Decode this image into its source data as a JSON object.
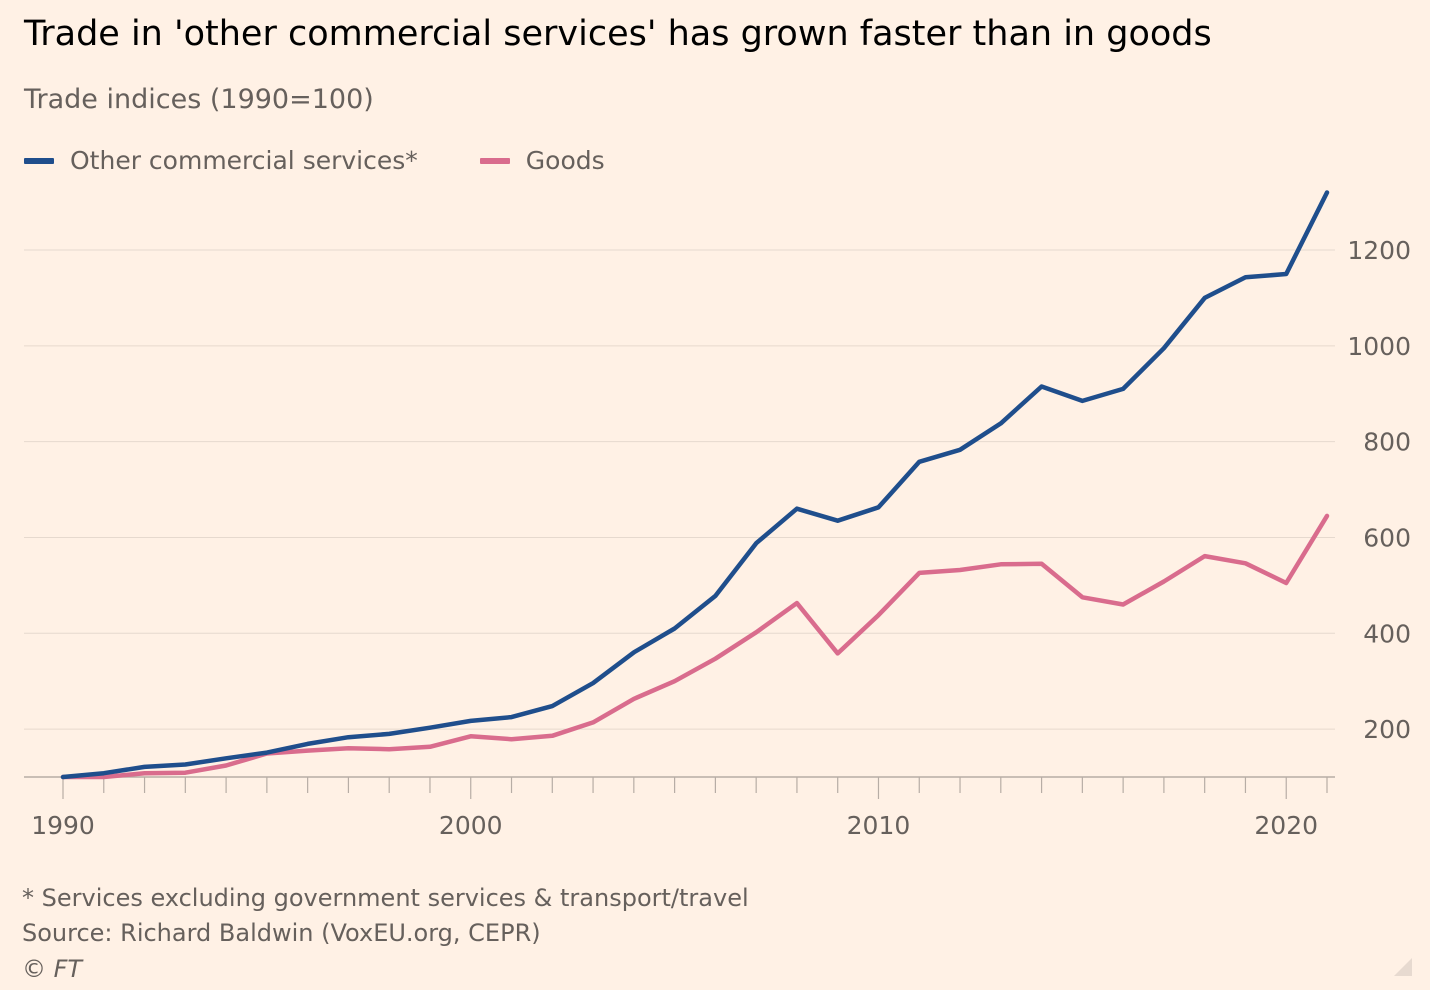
{
  "title": "Trade in 'other commercial services' has grown faster than in goods",
  "subtitle": "Trade indices (1990=100)",
  "legend": [
    {
      "label": "Other commercial services*",
      "color": "#1f4e8c"
    },
    {
      "label": "Goods",
      "color": "#d96c8d"
    }
  ],
  "footnotes": {
    "note": "* Services excluding government services & transport/travel",
    "source": "Source: Richard Baldwin (VoxEU.org, CEPR)",
    "credit": "© FT"
  },
  "chart_data": {
    "type": "line",
    "title": "Trade in 'other commercial services' has grown faster than in goods",
    "subtitle": "Trade indices (1990=100)",
    "xlabel": "",
    "ylabel": "",
    "x": [
      1990,
      1991,
      1992,
      1993,
      1994,
      1995,
      1996,
      1997,
      1998,
      1999,
      2000,
      2001,
      2002,
      2003,
      2004,
      2005,
      2006,
      2007,
      2008,
      2009,
      2010,
      2011,
      2012,
      2013,
      2014,
      2015,
      2016,
      2017,
      2018,
      2019,
      2020,
      2021
    ],
    "xlim": [
      1990,
      2021
    ],
    "ylim": [
      100,
      1310
    ],
    "x_ticks": [
      1990,
      2000,
      2010,
      2020
    ],
    "x_tick_labels": [
      "1990",
      "2000",
      "2010",
      "2020"
    ],
    "y_ticks": [
      200,
      400,
      600,
      800,
      1000,
      1200
    ],
    "y_tick_labels": [
      "200",
      "400",
      "600",
      "800",
      "1000",
      "1200"
    ],
    "grid": true,
    "y_axis_position": "right",
    "legend_position": "top-left",
    "series": [
      {
        "name": "Other commercial services*",
        "color": "#1f4e8c",
        "values": [
          100,
          108,
          121,
          126,
          139,
          151,
          169,
          183,
          190,
          203,
          217,
          225,
          248,
          296,
          360,
          410,
          478,
          588,
          660,
          635,
          663,
          758,
          783,
          838,
          915,
          885,
          910,
          995,
          1100,
          1143,
          1150,
          1320
        ]
      },
      {
        "name": "Goods",
        "color": "#d96c8d",
        "values": [
          100,
          100,
          108,
          109,
          124,
          149,
          155,
          160,
          158,
          163,
          185,
          179,
          186,
          214,
          263,
          300,
          347,
          402,
          463,
          358,
          438,
          526,
          532,
          544,
          545,
          475,
          460,
          508,
          561,
          546,
          505,
          645
        ]
      }
    ]
  }
}
